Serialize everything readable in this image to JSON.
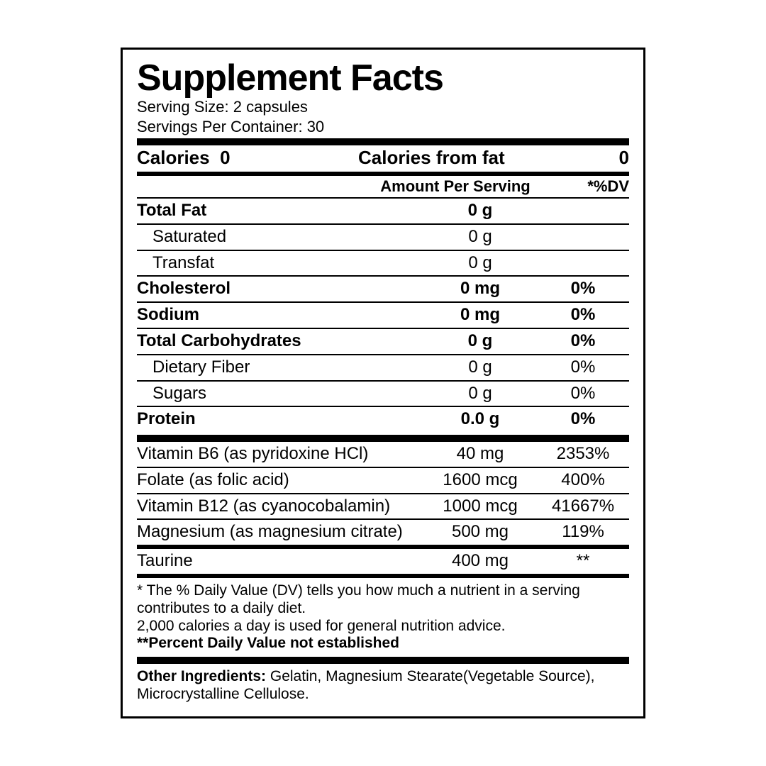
{
  "title": "Supplement Facts",
  "serving_size_label": "Serving Size:",
  "serving_size_value": "2 capsules",
  "servings_per_label": "Servings Per Container:",
  "servings_per_value": "30",
  "calories_label": "Calories",
  "calories_value": "0",
  "calories_fat_label": "Calories from fat",
  "calories_fat_value": "0",
  "header_amount": "Amount Per Serving",
  "header_dv": "*%DV",
  "rows1": [
    {
      "name": "Total Fat",
      "amount": "0 g",
      "dv": "",
      "bold": true,
      "indent": false
    },
    {
      "name": "Saturated",
      "amount": "0 g",
      "dv": "",
      "bold": false,
      "indent": true
    },
    {
      "name": "Transfat",
      "amount": "0 g",
      "dv": "",
      "bold": false,
      "indent": true
    },
    {
      "name": "Cholesterol",
      "amount": "0 mg",
      "dv": "0%",
      "bold": true,
      "indent": false
    },
    {
      "name": "Sodium",
      "amount": "0 mg",
      "dv": "0%",
      "bold": true,
      "indent": false
    },
    {
      "name": "Total Carbohydrates",
      "amount": "0 g",
      "dv": "0%",
      "bold": true,
      "indent": false
    },
    {
      "name": "Dietary Fiber",
      "amount": "0 g",
      "dv": "0%",
      "bold": false,
      "indent": true
    },
    {
      "name": "Sugars",
      "amount": "0 g",
      "dv": "0%",
      "bold": false,
      "indent": true
    },
    {
      "name": "Protein",
      "amount": "0.0 g",
      "dv": "0%",
      "bold": true,
      "indent": false
    }
  ],
  "rows2": [
    {
      "name": "Vitamin B6 (as pyridoxine HCl)",
      "amount": "40 mg",
      "dv": "2353%"
    },
    {
      "name": "Folate (as folic acid)",
      "amount": "1600 mcg",
      "dv": "400%"
    },
    {
      "name": "Vitamin B12 (as cyanocobalamin)",
      "amount": "1000 mcg",
      "dv": "41667%"
    },
    {
      "name": "Magnesium (as magnesium citrate)",
      "amount": "500 mg",
      "dv": "119%"
    }
  ],
  "rows3": [
    {
      "name": "Taurine",
      "amount": "400 mg",
      "dv": "**"
    }
  ],
  "footnote1": "* The % Daily Value (DV) tells you how much a nutrient in a serving contributes to a daily diet.",
  "footnote2": "2,000 calories a day is used for general nutrition advice.",
  "footnote3": "**Percent Daily Value not established",
  "other_label": "Other Ingredients:",
  "other_value": "Gelatin, Magnesium Stearate(Vegetable Source), Microcrystalline Cellulose."
}
